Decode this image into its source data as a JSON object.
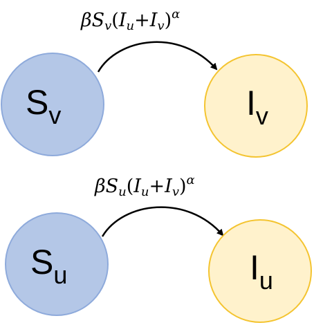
{
  "colors": {
    "susceptible_fill": "#b4c7e7",
    "susceptible_stroke": "#8eaadb",
    "infected_fill": "#fff2cc",
    "infected_stroke": "#f4c430",
    "arrow": "#000000"
  },
  "top_row": {
    "rate_label": {
      "beta": "β",
      "s": "S",
      "s_sub": "v",
      "open": "(",
      "i1": "I",
      "i1_sub": "u",
      "plus": "+",
      "i2": "I",
      "i2_sub": "v",
      "close": ")",
      "exp": "α"
    },
    "source": {
      "main": "S",
      "sub": "v"
    },
    "target": {
      "main": "I",
      "sub": "v"
    }
  },
  "bottom_row": {
    "rate_label": {
      "beta": "β",
      "s": "S",
      "s_sub": "u",
      "open": "(",
      "i1": "I",
      "i1_sub": "u",
      "plus": "+",
      "i2": "I",
      "i2_sub": "v",
      "close": ")",
      "exp": "α"
    },
    "source": {
      "main": "S",
      "sub": "u"
    },
    "target": {
      "main": "I",
      "sub": "u"
    }
  }
}
